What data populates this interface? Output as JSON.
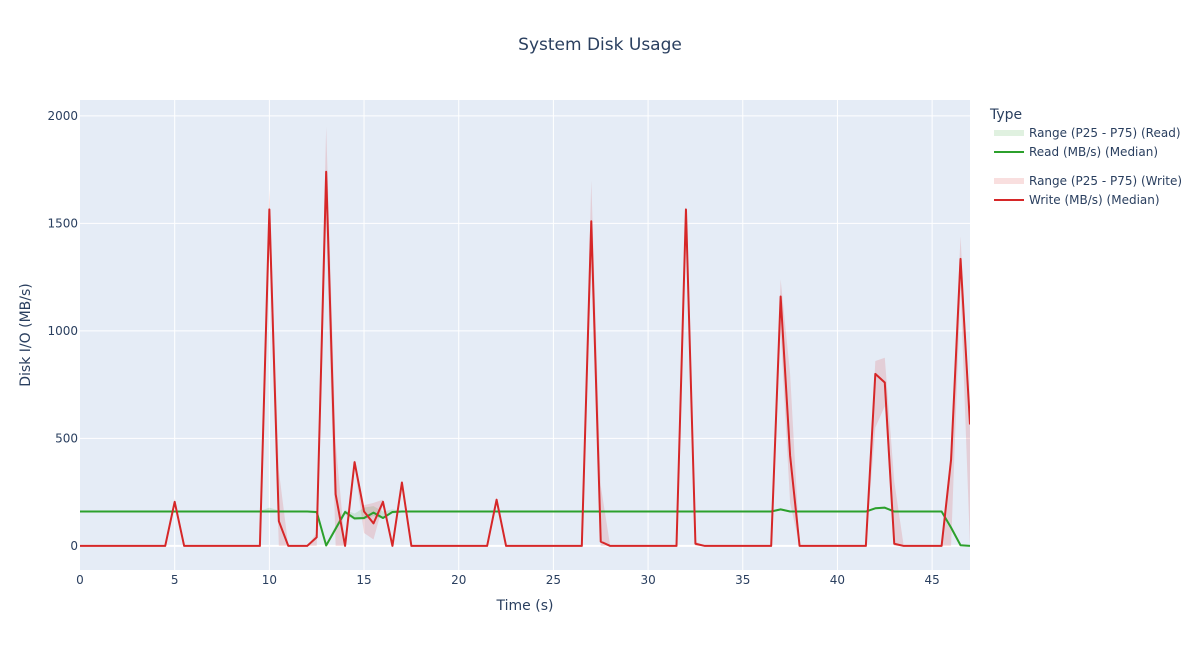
{
  "chart_data": {
    "type": "line",
    "title": "System Disk Usage",
    "xlabel": "Time (s)",
    "ylabel": "Disk I/O (MB/s)",
    "xlim": [
      0,
      47
    ],
    "ylim": [
      -112,
      2074
    ],
    "xticks": [
      0,
      5,
      10,
      15,
      20,
      25,
      30,
      35,
      40,
      45
    ],
    "yticks": [
      0,
      500,
      1000,
      1500,
      2000
    ],
    "grid": true,
    "legend": {
      "title": "Type",
      "placement": "right"
    },
    "x_start": 0,
    "x_step": 0.5,
    "series": [
      {
        "name": "Range (P25 - P75) (Read)",
        "kind": "band",
        "color": "#2ca02c",
        "lower": [
          156,
          156,
          156,
          156,
          156,
          156,
          156,
          156,
          156,
          156,
          156,
          156,
          156,
          156,
          156,
          156,
          156,
          156,
          156,
          156,
          156,
          156,
          156,
          156,
          156,
          150,
          0,
          70,
          145,
          120,
          122,
          140,
          125,
          150,
          156,
          156,
          156,
          156,
          156,
          156,
          156,
          156,
          156,
          156,
          156,
          156,
          156,
          156,
          156,
          156,
          156,
          156,
          156,
          156,
          156,
          156,
          156,
          156,
          156,
          156,
          156,
          156,
          156,
          156,
          156,
          156,
          156,
          156,
          156,
          156,
          156,
          156,
          156,
          156,
          165,
          156,
          156,
          156,
          156,
          156,
          156,
          156,
          156,
          156,
          170,
          172,
          156,
          156,
          156,
          156,
          156,
          156,
          75,
          0,
          0
        ],
        "upper": [
          163,
          163,
          163,
          163,
          163,
          163,
          163,
          163,
          163,
          163,
          163,
          163,
          163,
          163,
          163,
          163,
          163,
          163,
          163,
          163,
          178,
          165,
          163,
          163,
          163,
          162,
          10,
          95,
          168,
          150,
          178,
          185,
          160,
          170,
          163,
          163,
          163,
          163,
          163,
          163,
          163,
          163,
          163,
          163,
          163,
          163,
          163,
          163,
          163,
          163,
          163,
          163,
          163,
          163,
          163,
          163,
          163,
          163,
          163,
          163,
          163,
          163,
          163,
          163,
          163,
          163,
          163,
          163,
          163,
          163,
          163,
          163,
          163,
          163,
          175,
          163,
          163,
          163,
          163,
          163,
          163,
          163,
          163,
          163,
          180,
          183,
          163,
          163,
          163,
          163,
          163,
          163,
          95,
          8,
          3
        ]
      },
      {
        "name": "Read (MB/s) (Median)",
        "kind": "line",
        "color": "#2ca02c",
        "values": [
          160,
          160,
          160,
          160,
          160,
          160,
          160,
          160,
          160,
          160,
          160,
          160,
          160,
          160,
          160,
          160,
          160,
          160,
          160,
          160,
          160,
          160,
          160,
          160,
          160,
          158,
          2,
          80,
          158,
          128,
          130,
          155,
          130,
          158,
          160,
          160,
          160,
          160,
          160,
          160,
          160,
          160,
          160,
          160,
          160,
          160,
          160,
          160,
          160,
          160,
          160,
          160,
          160,
          160,
          160,
          160,
          160,
          160,
          160,
          160,
          160,
          160,
          160,
          160,
          160,
          160,
          160,
          160,
          160,
          160,
          160,
          160,
          160,
          160,
          170,
          160,
          160,
          160,
          160,
          160,
          160,
          160,
          160,
          160,
          175,
          178,
          160,
          160,
          160,
          160,
          160,
          160,
          85,
          3,
          0
        ]
      },
      {
        "name": "Range (P25 - P75) (Write)",
        "kind": "band",
        "color": "#d62728",
        "lower": [
          0,
          0,
          0,
          0,
          0,
          0,
          0,
          0,
          0,
          0,
          190,
          0,
          0,
          0,
          0,
          0,
          0,
          0,
          0,
          0,
          1400,
          0,
          0,
          0,
          0,
          0,
          1500,
          0,
          0,
          370,
          60,
          30,
          190,
          0,
          280,
          0,
          0,
          0,
          0,
          0,
          0,
          0,
          0,
          0,
          200,
          0,
          0,
          0,
          0,
          0,
          0,
          0,
          0,
          0,
          1300,
          0,
          0,
          0,
          0,
          0,
          0,
          0,
          0,
          0,
          1540,
          0,
          0,
          0,
          0,
          0,
          0,
          0,
          0,
          0,
          1000,
          200,
          0,
          0,
          0,
          0,
          0,
          0,
          0,
          0,
          550,
          650,
          0,
          0,
          0,
          0,
          0,
          0,
          0,
          1200,
          0
        ],
        "upper": [
          0,
          0,
          0,
          0,
          0,
          0,
          0,
          0,
          0,
          0,
          220,
          0,
          0,
          0,
          0,
          0,
          0,
          0,
          0,
          0,
          1660,
          350,
          0,
          0,
          0,
          60,
          1950,
          480,
          0,
          400,
          190,
          200,
          215,
          0,
          300,
          0,
          0,
          0,
          0,
          0,
          0,
          0,
          0,
          0,
          220,
          0,
          0,
          0,
          0,
          0,
          0,
          0,
          0,
          0,
          1700,
          280,
          0,
          0,
          0,
          0,
          0,
          0,
          0,
          0,
          1580,
          20,
          0,
          0,
          0,
          0,
          0,
          0,
          0,
          0,
          1240,
          800,
          0,
          0,
          0,
          0,
          0,
          0,
          0,
          0,
          860,
          875,
          300,
          0,
          0,
          0,
          0,
          0,
          460,
          1440,
          600
        ]
      },
      {
        "name": "Write (MB/s) (Median)",
        "kind": "line",
        "color": "#d62728",
        "values": [
          0,
          0,
          0,
          0,
          0,
          0,
          0,
          0,
          0,
          0,
          205,
          0,
          0,
          0,
          0,
          0,
          0,
          0,
          0,
          0,
          1565,
          115,
          0,
          0,
          0,
          40,
          1740,
          240,
          0,
          390,
          160,
          105,
          205,
          0,
          295,
          0,
          0,
          0,
          0,
          0,
          0,
          0,
          0,
          0,
          215,
          0,
          0,
          0,
          0,
          0,
          0,
          0,
          0,
          0,
          1510,
          20,
          0,
          0,
          0,
          0,
          0,
          0,
          0,
          0,
          1565,
          10,
          0,
          0,
          0,
          0,
          0,
          0,
          0,
          0,
          1160,
          420,
          0,
          0,
          0,
          0,
          0,
          0,
          0,
          0,
          800,
          760,
          10,
          0,
          0,
          0,
          0,
          0,
          400,
          1335,
          565
        ]
      }
    ]
  }
}
